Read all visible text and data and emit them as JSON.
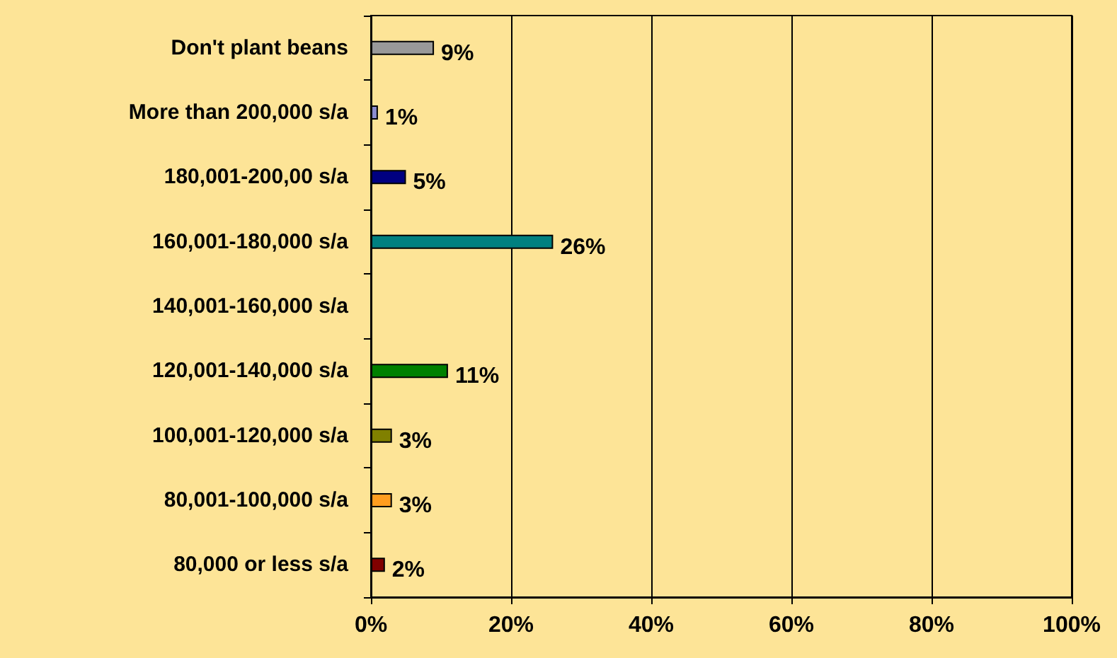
{
  "chart_data": {
    "type": "bar",
    "orientation": "horizontal",
    "categories": [
      "Don't plant beans",
      "More than 200,000 s/a",
      "180,001-200,00 s/a",
      "160,001-180,000 s/a",
      "140,001-160,000 s/a",
      "120,001-140,000 s/a",
      "100,001-120,000 s/a",
      "80,001-100,000 s/a",
      "80,000 or less s/a"
    ],
    "values": [
      9,
      1,
      5,
      26,
      null,
      11,
      3,
      3,
      2
    ],
    "colors": [
      "#999999",
      "#8c8cd0",
      "#000080",
      "#008080",
      null,
      "#008000",
      "#808000",
      "#ff9d1f",
      "#800000"
    ],
    "value_labels": [
      "9%",
      "1%",
      "5%",
      "26%",
      null,
      "11%",
      "3%",
      "3%",
      "2%"
    ],
    "xlim": [
      0,
      100
    ],
    "xticks": [
      {
        "value": 0,
        "label": "0%"
      },
      {
        "value": 20,
        "label": "20%"
      },
      {
        "value": 40,
        "label": "40%"
      },
      {
        "value": 60,
        "label": "60%"
      },
      {
        "value": 80,
        "label": "80%"
      },
      {
        "value": 100,
        "label": "100%"
      }
    ],
    "grid": "x"
  }
}
